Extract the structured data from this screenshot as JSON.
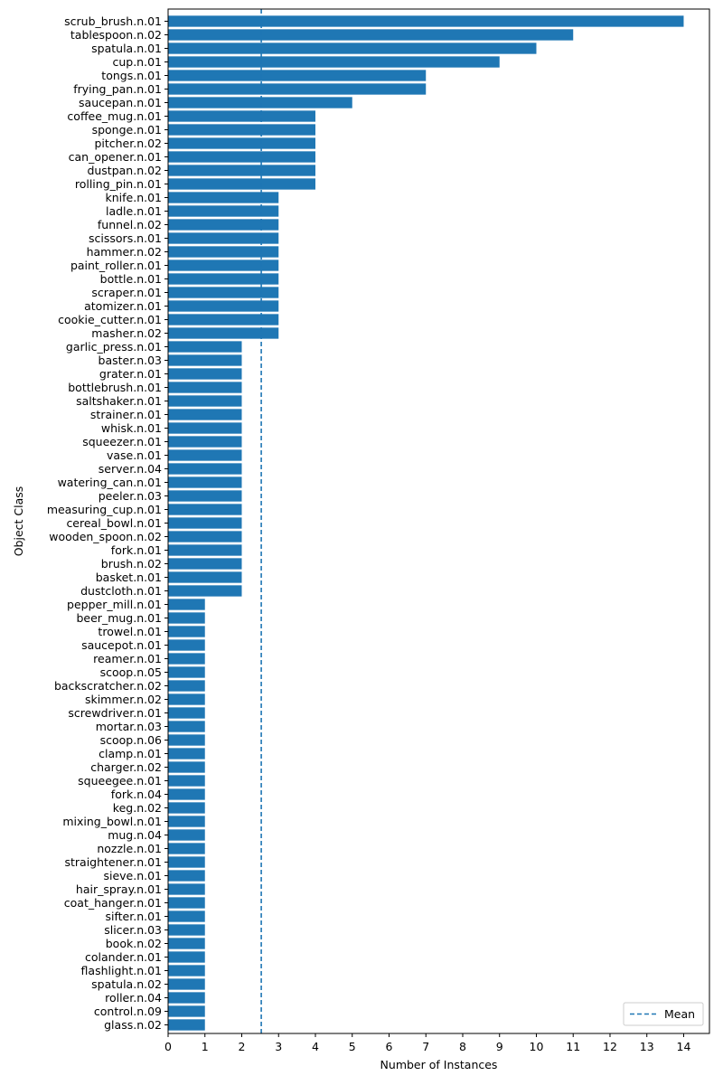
{
  "chart_data": {
    "type": "bar",
    "orientation": "horizontal",
    "xlabel": "Number of Instances",
    "ylabel": "Object Class",
    "xlim": [
      0,
      14.7
    ],
    "xticks": [
      0,
      1,
      2,
      3,
      4,
      5,
      6,
      7,
      8,
      9,
      10,
      11,
      12,
      13,
      14
    ],
    "grid": false,
    "legend": {
      "placement": "bottom-right",
      "entries": [
        "Mean"
      ]
    },
    "bar_color": "#1f77b4",
    "mean_line": {
      "label": "Mean",
      "value": 2.53,
      "style": "dashed",
      "color": "#1f77b4"
    },
    "categories": [
      "scrub_brush.n.01",
      "tablespoon.n.02",
      "spatula.n.01",
      "cup.n.01",
      "tongs.n.01",
      "frying_pan.n.01",
      "saucepan.n.01",
      "coffee_mug.n.01",
      "sponge.n.01",
      "pitcher.n.02",
      "can_opener.n.01",
      "dustpan.n.02",
      "rolling_pin.n.01",
      "knife.n.01",
      "ladle.n.01",
      "funnel.n.02",
      "scissors.n.01",
      "hammer.n.02",
      "paint_roller.n.01",
      "bottle.n.01",
      "scraper.n.01",
      "atomizer.n.01",
      "cookie_cutter.n.01",
      "masher.n.02",
      "garlic_press.n.01",
      "baster.n.03",
      "grater.n.01",
      "bottlebrush.n.01",
      "saltshaker.n.01",
      "strainer.n.01",
      "whisk.n.01",
      "squeezer.n.01",
      "vase.n.01",
      "server.n.04",
      "watering_can.n.01",
      "peeler.n.03",
      "measuring_cup.n.01",
      "cereal_bowl.n.01",
      "wooden_spoon.n.02",
      "fork.n.01",
      "brush.n.02",
      "basket.n.01",
      "dustcloth.n.01",
      "pepper_mill.n.01",
      "beer_mug.n.01",
      "trowel.n.01",
      "saucepot.n.01",
      "reamer.n.01",
      "scoop.n.05",
      "backscratcher.n.02",
      "skimmer.n.02",
      "screwdriver.n.01",
      "mortar.n.03",
      "scoop.n.06",
      "clamp.n.01",
      "charger.n.02",
      "squeegee.n.01",
      "fork.n.04",
      "keg.n.02",
      "mixing_bowl.n.01",
      "mug.n.04",
      "nozzle.n.01",
      "straightener.n.01",
      "sieve.n.01",
      "hair_spray.n.01",
      "coat_hanger.n.01",
      "sifter.n.01",
      "slicer.n.03",
      "book.n.02",
      "colander.n.01",
      "flashlight.n.01",
      "spatula.n.02",
      "roller.n.04",
      "control.n.09",
      "glass.n.02"
    ],
    "values": [
      14,
      11,
      10,
      9,
      7,
      7,
      5,
      4,
      4,
      4,
      4,
      4,
      4,
      3,
      3,
      3,
      3,
      3,
      3,
      3,
      3,
      3,
      3,
      3,
      2,
      2,
      2,
      2,
      2,
      2,
      2,
      2,
      2,
      2,
      2,
      2,
      2,
      2,
      2,
      2,
      2,
      2,
      2,
      1,
      1,
      1,
      1,
      1,
      1,
      1,
      1,
      1,
      1,
      1,
      1,
      1,
      1,
      1,
      1,
      1,
      1,
      1,
      1,
      1,
      1,
      1,
      1,
      1,
      1,
      1,
      1,
      1,
      1,
      1,
      1
    ]
  }
}
